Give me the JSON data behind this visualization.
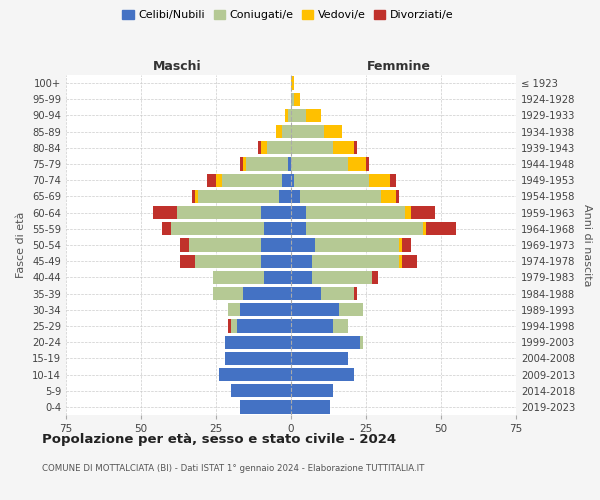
{
  "age_groups": [
    "0-4",
    "5-9",
    "10-14",
    "15-19",
    "20-24",
    "25-29",
    "30-34",
    "35-39",
    "40-44",
    "45-49",
    "50-54",
    "55-59",
    "60-64",
    "65-69",
    "70-74",
    "75-79",
    "80-84",
    "85-89",
    "90-94",
    "95-99",
    "100+"
  ],
  "birth_years": [
    "2019-2023",
    "2014-2018",
    "2009-2013",
    "2004-2008",
    "1999-2003",
    "1994-1998",
    "1989-1993",
    "1984-1988",
    "1979-1983",
    "1974-1978",
    "1969-1973",
    "1964-1968",
    "1959-1963",
    "1954-1958",
    "1949-1953",
    "1944-1948",
    "1939-1943",
    "1934-1938",
    "1929-1933",
    "1924-1928",
    "≤ 1923"
  ],
  "colors": {
    "celibi": "#4472c4",
    "coniugati": "#b5c994",
    "vedovi": "#ffc000",
    "divorziati": "#c0312b"
  },
  "males": {
    "celibi": [
      17,
      20,
      24,
      22,
      22,
      18,
      17,
      16,
      9,
      10,
      10,
      9,
      10,
      4,
      3,
      1,
      0,
      0,
      0,
      0,
      0
    ],
    "coniugati": [
      0,
      0,
      0,
      0,
      0,
      2,
      4,
      10,
      17,
      22,
      24,
      31,
      28,
      27,
      20,
      14,
      8,
      3,
      1,
      0,
      0
    ],
    "vedovi": [
      0,
      0,
      0,
      0,
      0,
      0,
      0,
      0,
      0,
      0,
      0,
      0,
      0,
      1,
      2,
      1,
      2,
      2,
      1,
      0,
      0
    ],
    "divorziati": [
      0,
      0,
      0,
      0,
      0,
      1,
      0,
      0,
      0,
      5,
      3,
      3,
      8,
      1,
      3,
      1,
      1,
      0,
      0,
      0,
      0
    ]
  },
  "females": {
    "celibi": [
      13,
      14,
      21,
      19,
      23,
      14,
      16,
      10,
      7,
      7,
      8,
      5,
      5,
      3,
      1,
      0,
      0,
      0,
      0,
      0,
      0
    ],
    "coniugati": [
      0,
      0,
      0,
      0,
      1,
      5,
      8,
      11,
      20,
      29,
      28,
      39,
      33,
      27,
      25,
      19,
      14,
      11,
      5,
      1,
      0
    ],
    "vedovi": [
      0,
      0,
      0,
      0,
      0,
      0,
      0,
      0,
      0,
      1,
      1,
      1,
      2,
      5,
      7,
      6,
      7,
      6,
      5,
      2,
      1
    ],
    "divorziati": [
      0,
      0,
      0,
      0,
      0,
      0,
      0,
      1,
      2,
      5,
      3,
      10,
      8,
      1,
      2,
      1,
      1,
      0,
      0,
      0,
      0
    ]
  },
  "title": "Popolazione per età, sesso e stato civile - 2024",
  "subtitle": "COMUNE DI MOTTALCIATA (BI) - Dati ISTAT 1° gennaio 2024 - Elaborazione TUTTITALIA.IT",
  "xlabel_left": "Maschi",
  "xlabel_right": "Femmine",
  "ylabel_left": "Fasce di età",
  "ylabel_right": "Anni di nascita",
  "xlim": 75,
  "legend_labels": [
    "Celibi/Nubili",
    "Coniugati/e",
    "Vedovi/e",
    "Divorziati/e"
  ],
  "bg_color": "#f5f5f5",
  "plot_bg_color": "#ffffff"
}
